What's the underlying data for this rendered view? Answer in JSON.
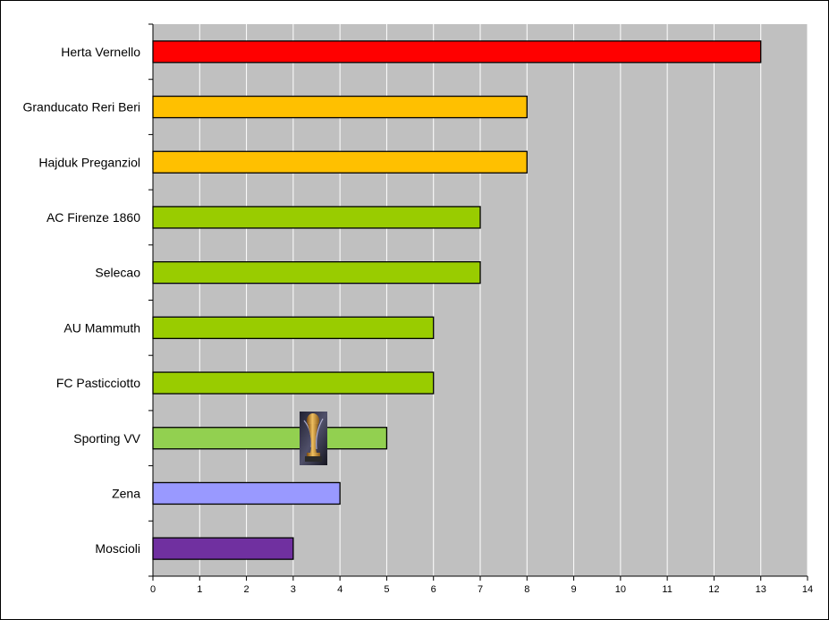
{
  "chart_data": {
    "type": "bar",
    "orientation": "horizontal",
    "categories": [
      "Herta Vernello",
      "Granducato Reri Beri",
      "Hajduk Preganziol",
      "AC Firenze 1860",
      "Selecao",
      "AU Mammuth",
      "FC Pasticciotto",
      "Sporting VV",
      "Zena",
      "Moscioli"
    ],
    "values": [
      13,
      8,
      8,
      7,
      7,
      6,
      6,
      5,
      4,
      3
    ],
    "bar_colors": [
      "#ff0000",
      "#ffc000",
      "#ffc000",
      "#99cc00",
      "#99cc00",
      "#99cc00",
      "#99cc00",
      "#92d050",
      "#9999ff",
      "#7030a0"
    ],
    "xlim": [
      0,
      14
    ],
    "xticks": [
      0,
      1,
      2,
      3,
      4,
      5,
      6,
      7,
      8,
      9,
      10,
      11,
      12,
      13,
      14
    ],
    "grid": true,
    "plot_background": "#c0c0c0",
    "gridline_color": "#ffffff",
    "legend": "none",
    "annotation_icon": "trophy-icon"
  }
}
